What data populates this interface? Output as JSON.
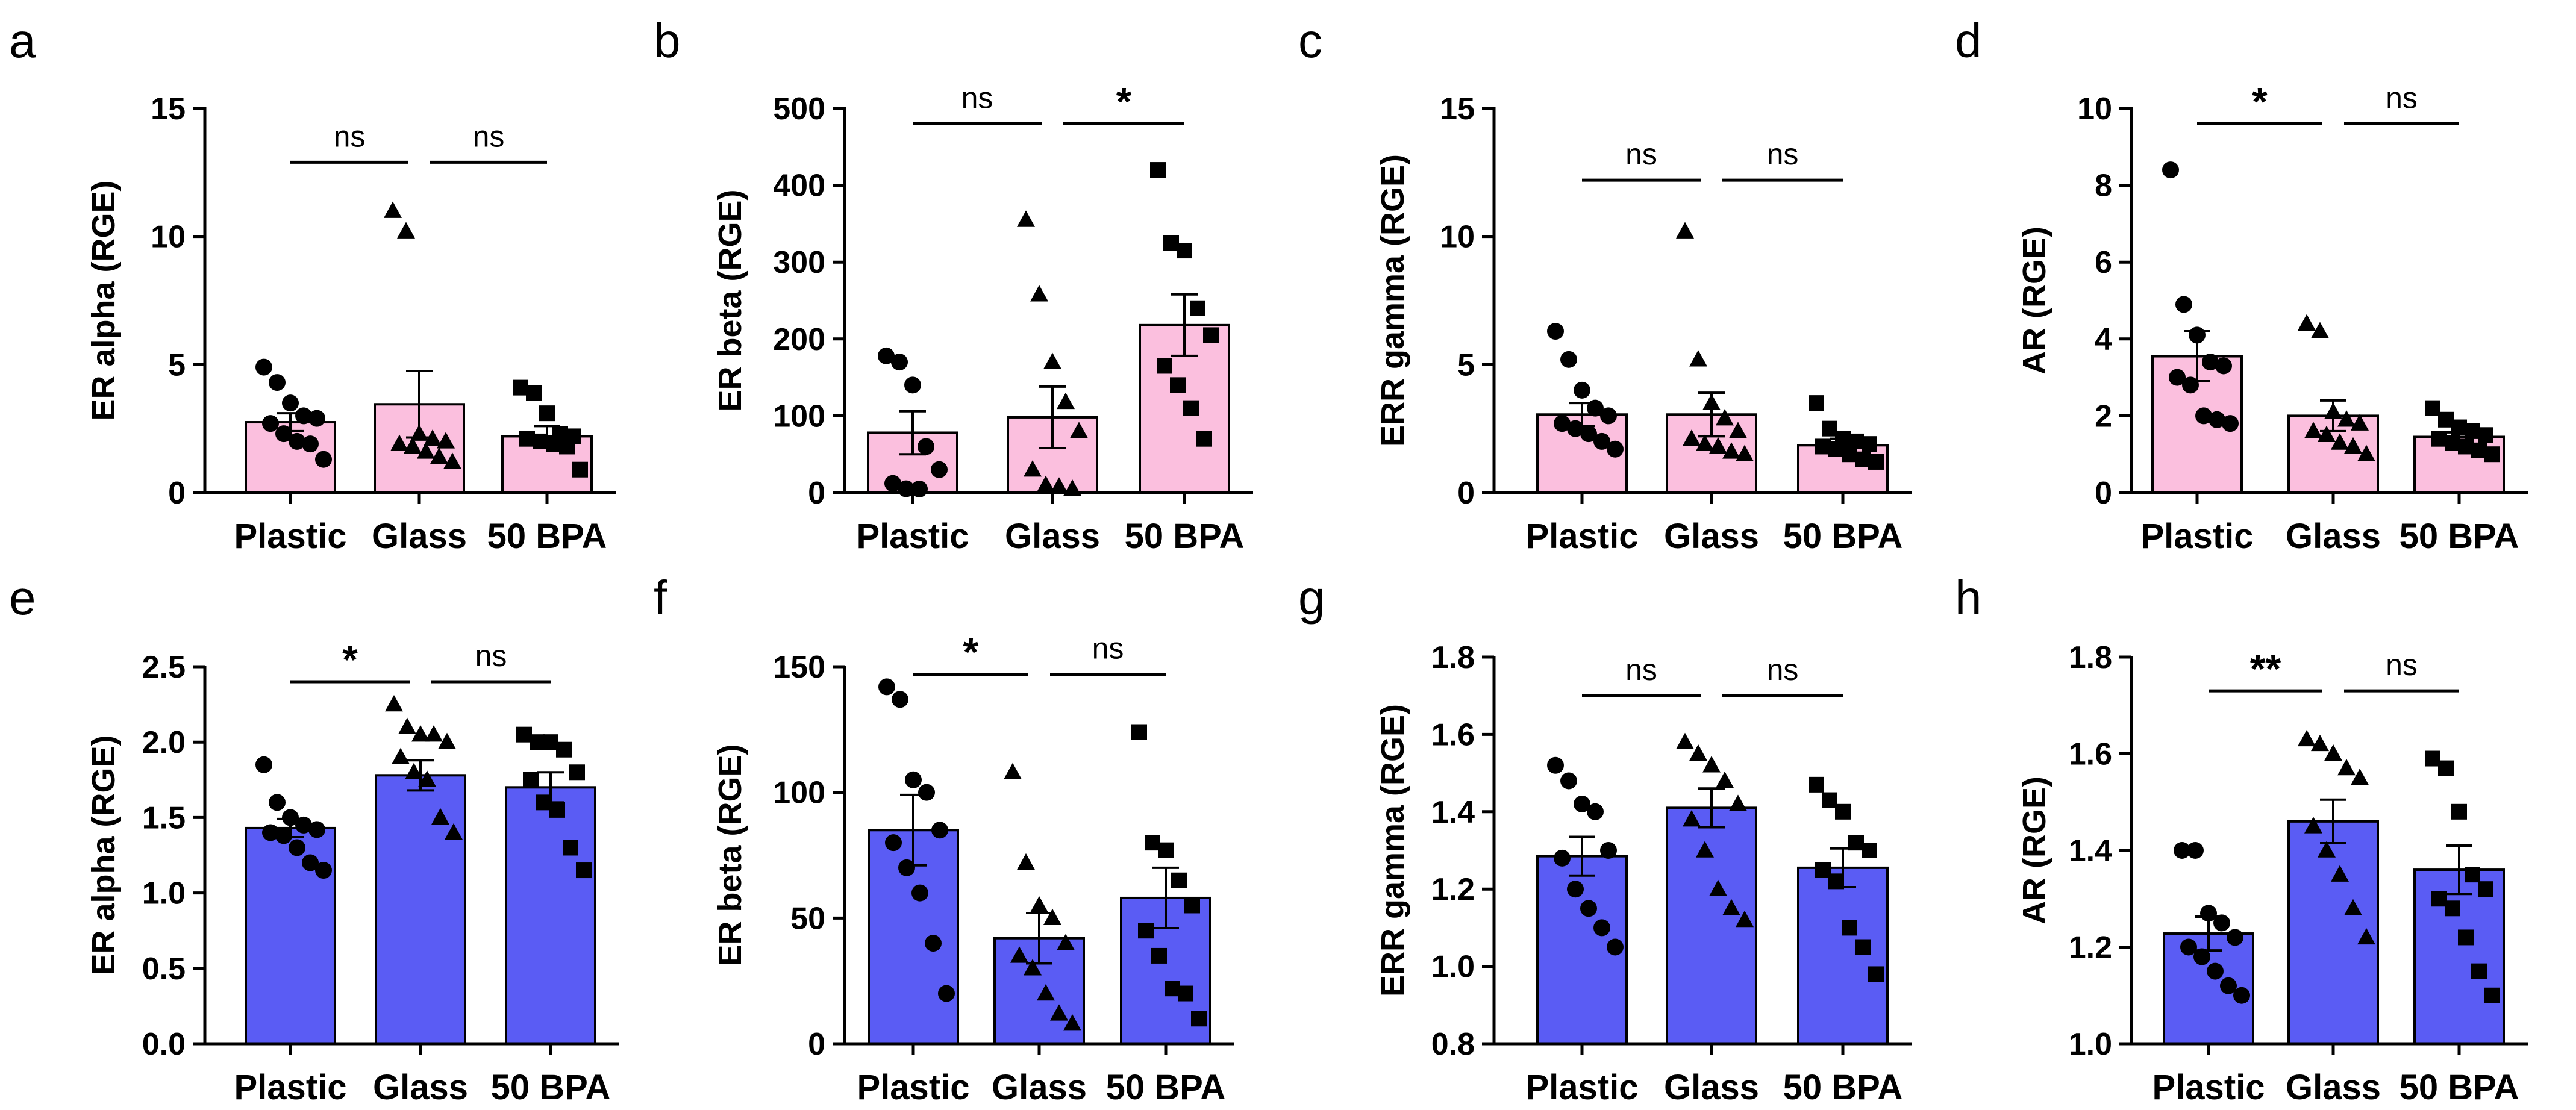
{
  "colors": {
    "pink": "#fbbfde",
    "blue": "#5a5cf4",
    "ink": "#000000"
  },
  "chart_data": [
    {
      "letter": "a",
      "type": "bar",
      "color": "pink",
      "categories": [
        "Plastic",
        "Glass",
        "50 BPA"
      ],
      "ylabel": "ER alpha (RGE)",
      "ylim": [
        0,
        15
      ],
      "yticks": [
        0,
        5,
        10,
        15
      ],
      "yticklabels": [
        "0",
        "5",
        "10",
        "15"
      ],
      "values": [
        2.75,
        3.45,
        2.2
      ],
      "sem": [
        0.35,
        1.3,
        0.4
      ],
      "markers": [
        "circle",
        "triangle",
        "square"
      ],
      "points": [
        [
          4.9,
          4.3,
          3.5,
          3.0,
          2.9,
          2.7,
          2.3,
          2.0,
          1.9,
          1.3
        ],
        [
          11.0,
          10.2,
          2.3,
          2.1,
          2.0,
          1.9,
          1.8,
          1.6,
          1.4,
          1.2
        ],
        [
          4.1,
          3.9,
          3.1,
          2.3,
          2.2,
          2.1,
          2.0,
          1.9,
          1.8,
          0.9
        ]
      ],
      "significance": [
        {
          "from": 0,
          "to": 1,
          "label": "ns",
          "y": 12.9
        },
        {
          "from": 1,
          "to": 2,
          "label": "ns",
          "y": 12.9
        }
      ]
    },
    {
      "letter": "b",
      "type": "bar",
      "color": "pink",
      "categories": [
        "Plastic",
        "Glass",
        "50 BPA"
      ],
      "ylabel": "ER beta (RGE)",
      "ylim": [
        0,
        500
      ],
      "yticks": [
        0,
        100,
        200,
        300,
        400,
        500
      ],
      "yticklabels": [
        "0",
        "100",
        "200",
        "300",
        "400",
        "500"
      ],
      "values": [
        78,
        98,
        218
      ],
      "sem": [
        28,
        40,
        40
      ],
      "markers": [
        "circle",
        "triangle",
        "square"
      ],
      "points": [
        [
          178,
          170,
          140,
          60,
          30,
          12,
          5,
          3
        ],
        [
          355,
          258,
          170,
          118,
          80,
          30,
          10,
          8,
          5
        ],
        [
          420,
          325,
          315,
          240,
          205,
          165,
          140,
          110,
          70
        ]
      ],
      "significance": [
        {
          "from": 0,
          "to": 1,
          "label": "ns",
          "y": 480
        },
        {
          "from": 1,
          "to": 2,
          "label": "*",
          "y": 480
        }
      ]
    },
    {
      "letter": "c",
      "type": "bar",
      "color": "pink",
      "categories": [
        "Plastic",
        "Glass",
        "50 BPA"
      ],
      "ylabel": "ERR gamma (RGE)",
      "ylim": [
        0,
        15
      ],
      "yticks": [
        0,
        5,
        10,
        15
      ],
      "yticklabels": [
        "0",
        "5",
        "10",
        "15"
      ],
      "values": [
        3.05,
        3.05,
        1.85
      ],
      "sem": [
        0.45,
        0.85,
        0.25
      ],
      "markers": [
        "circle",
        "triangle",
        "square"
      ],
      "points": [
        [
          6.3,
          5.2,
          4.0,
          3.3,
          3.0,
          2.7,
          2.5,
          2.3,
          2.0,
          1.7
        ],
        [
          10.2,
          5.2,
          3.5,
          2.9,
          2.4,
          2.1,
          1.9,
          1.8,
          1.6,
          1.5
        ],
        [
          3.5,
          2.5,
          2.1,
          2.0,
          1.9,
          1.8,
          1.7,
          1.5,
          1.3,
          1.2
        ]
      ],
      "significance": [
        {
          "from": 0,
          "to": 1,
          "label": "ns",
          "y": 12.2
        },
        {
          "from": 1,
          "to": 2,
          "label": "ns",
          "y": 12.2
        }
      ]
    },
    {
      "letter": "d",
      "type": "bar",
      "color": "pink",
      "categories": [
        "Plastic",
        "Glass",
        "50 BPA"
      ],
      "ylabel": "AR (RGE)",
      "ylim": [
        0,
        10
      ],
      "yticks": [
        0,
        2,
        4,
        6,
        8,
        10
      ],
      "yticklabels": [
        "0",
        "2",
        "4",
        "6",
        "8",
        "10"
      ],
      "values": [
        3.55,
        2.0,
        1.45
      ],
      "sem": [
        0.65,
        0.4,
        0.12
      ],
      "markers": [
        "circle",
        "triangle",
        "square"
      ],
      "points": [
        [
          8.4,
          4.9,
          4.1,
          3.4,
          3.3,
          3.0,
          2.8,
          2.0,
          1.9,
          1.8
        ],
        [
          4.4,
          4.2,
          2.1,
          1.9,
          1.8,
          1.6,
          1.5,
          1.3,
          1.2,
          1.0
        ],
        [
          2.2,
          1.9,
          1.7,
          1.6,
          1.5,
          1.4,
          1.3,
          1.2,
          1.1,
          1.0
        ]
      ],
      "significance": [
        {
          "from": 0,
          "to": 1,
          "label": "*",
          "y": 9.6
        },
        {
          "from": 1,
          "to": 2,
          "label": "ns",
          "y": 9.6
        }
      ]
    },
    {
      "letter": "e",
      "type": "bar",
      "color": "blue",
      "categories": [
        "Plastic",
        "Glass",
        "50 BPA"
      ],
      "ylabel": "ER alpha (RGE)",
      "ylim": [
        0,
        2.5
      ],
      "yticks": [
        0,
        0.5,
        1.0,
        1.5,
        2.0,
        2.5
      ],
      "yticklabels": [
        "0.0",
        "0.5",
        "1.0",
        "1.5",
        "2.0",
        "2.5"
      ],
      "values": [
        1.43,
        1.78,
        1.7
      ],
      "sem": [
        0.06,
        0.1,
        0.1
      ],
      "markers": [
        "circle",
        "triangle",
        "square"
      ],
      "points": [
        [
          1.85,
          1.6,
          1.5,
          1.45,
          1.42,
          1.4,
          1.38,
          1.3,
          1.2,
          1.15
        ],
        [
          2.25,
          2.1,
          2.05,
          2.05,
          2.0,
          1.9,
          1.8,
          1.75,
          1.5,
          1.4
        ],
        [
          2.05,
          2.0,
          2.0,
          1.95,
          1.8,
          1.75,
          1.6,
          1.55,
          1.3,
          1.15
        ]
      ],
      "significance": [
        {
          "from": 0,
          "to": 1,
          "label": "*",
          "y": 2.4
        },
        {
          "from": 1,
          "to": 2,
          "label": "ns",
          "y": 2.4
        }
      ]
    },
    {
      "letter": "f",
      "type": "bar",
      "color": "blue",
      "categories": [
        "Plastic",
        "Glass",
        "50 BPA"
      ],
      "ylabel": "ER beta (RGE)",
      "ylim": [
        0,
        150
      ],
      "yticks": [
        0,
        50,
        100,
        150
      ],
      "yticklabels": [
        "0",
        "50",
        "100",
        "150"
      ],
      "values": [
        85,
        42,
        58
      ],
      "sem": [
        14,
        10,
        12
      ],
      "markers": [
        "circle",
        "triangle",
        "square"
      ],
      "points": [
        [
          142,
          137,
          105,
          100,
          85,
          80,
          70,
          60,
          40,
          20
        ],
        [
          108,
          72,
          55,
          50,
          40,
          35,
          30,
          20,
          12,
          8
        ],
        [
          124,
          80,
          77,
          65,
          55,
          45,
          35,
          22,
          20,
          10
        ]
      ],
      "significance": [
        {
          "from": 0,
          "to": 1,
          "label": "*",
          "y": 147
        },
        {
          "from": 1,
          "to": 2,
          "label": "ns",
          "y": 147
        }
      ]
    },
    {
      "letter": "g",
      "type": "bar",
      "color": "blue",
      "categories": [
        "Plastic",
        "Glass",
        "50 BPA"
      ],
      "ylabel": "ERR gamma (RGE)",
      "ylim": [
        0.8,
        1.8
      ],
      "yticks": [
        0.8,
        1.0,
        1.2,
        1.4,
        1.6,
        1.8
      ],
      "yticklabels": [
        "0.8",
        "1.0",
        "1.2",
        "1.4",
        "1.6",
        "1.8"
      ],
      "values": [
        1.285,
        1.41,
        1.255
      ],
      "sem": [
        0.05,
        0.05,
        0.05
      ],
      "markers": [
        "circle",
        "triangle",
        "square"
      ],
      "points": [
        [
          1.52,
          1.48,
          1.42,
          1.4,
          1.3,
          1.28,
          1.2,
          1.15,
          1.1,
          1.05
        ],
        [
          1.58,
          1.55,
          1.52,
          1.48,
          1.42,
          1.38,
          1.3,
          1.2,
          1.15,
          1.12
        ],
        [
          1.47,
          1.43,
          1.4,
          1.32,
          1.3,
          1.25,
          1.22,
          1.1,
          1.05,
          0.98
        ]
      ],
      "significance": [
        {
          "from": 0,
          "to": 1,
          "label": "ns",
          "y": 1.7
        },
        {
          "from": 1,
          "to": 2,
          "label": "ns",
          "y": 1.7
        }
      ]
    },
    {
      "letter": "h",
      "type": "bar",
      "color": "blue",
      "categories": [
        "Plastic",
        "Glass",
        "50 BPA"
      ],
      "ylabel": "AR (RGE)",
      "ylim": [
        1.0,
        1.8
      ],
      "yticks": [
        1.0,
        1.2,
        1.4,
        1.6,
        1.8
      ],
      "yticklabels": [
        "1.0",
        "1.2",
        "1.4",
        "1.6",
        "1.8"
      ],
      "values": [
        1.228,
        1.46,
        1.36
      ],
      "sem": [
        0.035,
        0.045,
        0.05
      ],
      "markers": [
        "circle",
        "triangle",
        "square"
      ],
      "points": [
        [
          1.4,
          1.4,
          1.27,
          1.25,
          1.22,
          1.2,
          1.18,
          1.15,
          1.12,
          1.1
        ],
        [
          1.63,
          1.62,
          1.6,
          1.57,
          1.55,
          1.45,
          1.4,
          1.35,
          1.28,
          1.22
        ],
        [
          1.59,
          1.57,
          1.48,
          1.35,
          1.32,
          1.3,
          1.28,
          1.22,
          1.15,
          1.1
        ]
      ],
      "significance": [
        {
          "from": 0,
          "to": 1,
          "label": "**",
          "y": 1.73
        },
        {
          "from": 1,
          "to": 2,
          "label": "ns",
          "y": 1.73
        }
      ]
    }
  ]
}
